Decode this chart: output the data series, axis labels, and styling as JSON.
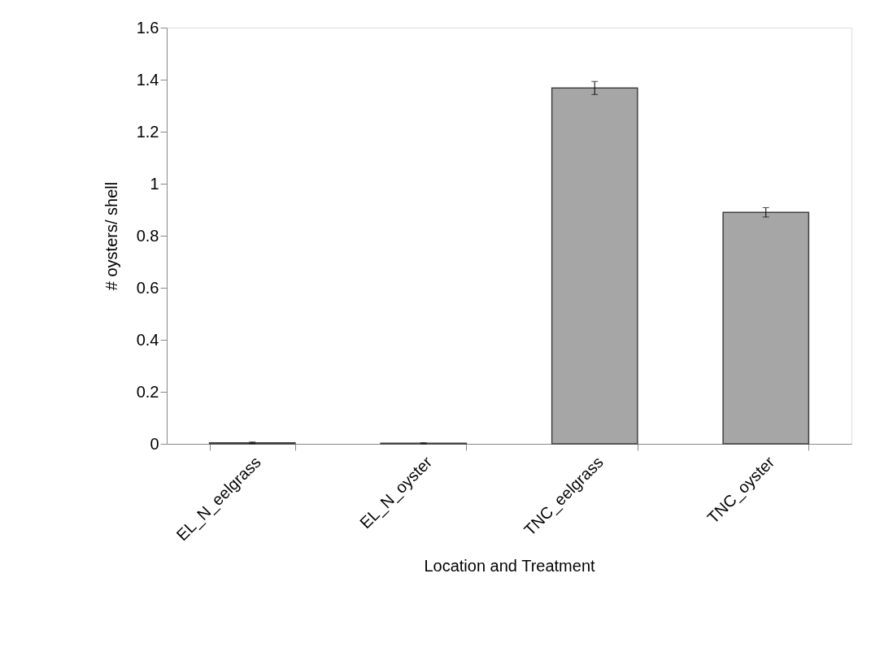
{
  "chart_data": {
    "type": "bar",
    "xlabel": "Location and Treatment",
    "ylabel": "# oysters/ shell",
    "categories": [
      "EL_N_eelgrass",
      "EL_N_oyster",
      "TNC_eelgrass",
      "TNC_oyster"
    ],
    "values": [
      0.004,
      0.002,
      1.368,
      0.89
    ],
    "errors": [
      0.003,
      0.002,
      0.025,
      0.018
    ],
    "color": "#a6a6a6",
    "ylim": [
      0,
      1.6
    ],
    "yticks": [
      0,
      0.2,
      0.4,
      0.6,
      0.8,
      1,
      1.2,
      1.4,
      1.6
    ],
    "grid": false
  }
}
